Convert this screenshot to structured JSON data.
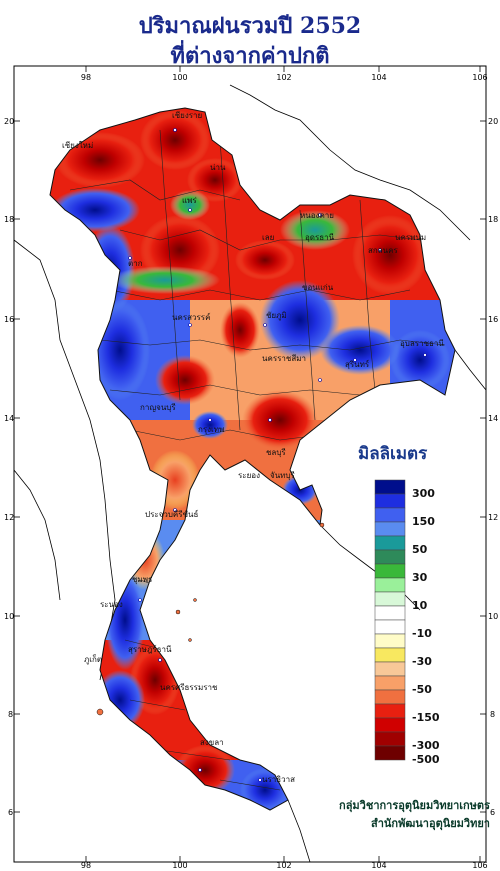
{
  "title": {
    "line1": "ปริมาณฝนรวมปี  2552",
    "line2": "ที่ต่างจากค่าปกติ"
  },
  "axes": {
    "x_ticks": [
      "98",
      "100",
      "102",
      "104",
      "106"
    ],
    "y_ticks": [
      "20",
      "18",
      "16",
      "14",
      "12",
      "10",
      "8",
      "6"
    ]
  },
  "legend": {
    "title": "มิลลิเมตร",
    "entries": [
      {
        "label": "300",
        "color": "#000e8c"
      },
      {
        "label": "",
        "color": "#1e2ee0"
      },
      {
        "label": "150",
        "color": "#4060f0"
      },
      {
        "label": "",
        "color": "#5a8cf0"
      },
      {
        "label": "50",
        "color": "#1a9a9a"
      },
      {
        "label": "",
        "color": "#2e8a5a"
      },
      {
        "label": "30",
        "color": "#3ab83a"
      },
      {
        "label": "",
        "color": "#9af09a"
      },
      {
        "label": "10",
        "color": "#d8f8d8"
      },
      {
        "label": "",
        "color": "#ffffff"
      },
      {
        "label": "-10",
        "color": "#ffffff"
      },
      {
        "label": "",
        "color": "#fffcc8"
      },
      {
        "label": "-30",
        "color": "#f8e860"
      },
      {
        "label": "",
        "color": "#f8c898"
      },
      {
        "label": "-50",
        "color": "#f8a068"
      },
      {
        "label": "",
        "color": "#f07040"
      },
      {
        "label": "-150",
        "color": "#e82010"
      },
      {
        "label": "",
        "color": "#d00000"
      },
      {
        "label": "-300",
        "color": "#a00000"
      },
      {
        "label": "-500",
        "color": "#6e0000"
      }
    ]
  },
  "place_labels": [
    {
      "name": "เชียงราย",
      "id": "chiang-rai"
    },
    {
      "name": "เชียงใหม่",
      "id": "chiang-mai"
    },
    {
      "name": "น่าน",
      "id": "nan"
    },
    {
      "name": "แพร่",
      "id": "phrae"
    },
    {
      "name": "ตาก",
      "id": "tak"
    },
    {
      "name": "หนองคาย",
      "id": "nong-khai"
    },
    {
      "name": "อุดรธานี",
      "id": "udon-thani"
    },
    {
      "name": "เลย",
      "id": "loei"
    },
    {
      "name": "นครพนม",
      "id": "nakhon-phanom"
    },
    {
      "name": "สกลนคร",
      "id": "sakon-nakhon"
    },
    {
      "name": "ขอนแก่น",
      "id": "khon-kaen"
    },
    {
      "name": "ชัยภูมิ",
      "id": "chaiyaphum"
    },
    {
      "name": "นครสวรรค์",
      "id": "nakhon-sawan"
    },
    {
      "name": "นครราชสีมา",
      "id": "nakhon-ratchasima"
    },
    {
      "name": "อุบลราชธานี",
      "id": "ubon"
    },
    {
      "name": "สุรินทร์",
      "id": "surin"
    },
    {
      "name": "กาญจนบุรี",
      "id": "kanchanaburi"
    },
    {
      "name": "กรุงเทพ",
      "id": "bangkok"
    },
    {
      "name": "ชลบุรี",
      "id": "chonburi"
    },
    {
      "name": "ระยอง",
      "id": "rayong"
    },
    {
      "name": "จันทบุรี",
      "id": "chanthaburi"
    },
    {
      "name": "ประจวบคีรีขันธ์",
      "id": "prachuap"
    },
    {
      "name": "ชุมพร",
      "id": "chumphon"
    },
    {
      "name": "ระนอง",
      "id": "ranong"
    },
    {
      "name": "สุราษฎร์ธานี",
      "id": "surat-thani"
    },
    {
      "name": "นครศรีธรรมราช",
      "id": "nakhon-si-thammarat"
    },
    {
      "name": "ภูเก็ต",
      "id": "phuket"
    },
    {
      "name": "สงขลา",
      "id": "songkhla"
    },
    {
      "name": "นราธิวาส",
      "id": "narathiwat"
    }
  ],
  "credit": {
    "line1": "กลุ่มวิชาการอุตุนิยมวิทยาเกษตร",
    "line2": "สำนักพัฒนาอุตุนิยมวิทยา"
  }
}
